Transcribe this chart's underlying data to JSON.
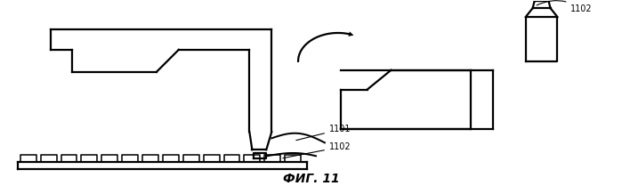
{
  "title": "ФИГ. 11",
  "label_1101": "1101",
  "label_1102": "1102",
  "bg_color": "#ffffff",
  "line_color": "#000000",
  "line_width": 1.6,
  "fig_width": 6.99,
  "fig_height": 2.18,
  "dpi": 100
}
